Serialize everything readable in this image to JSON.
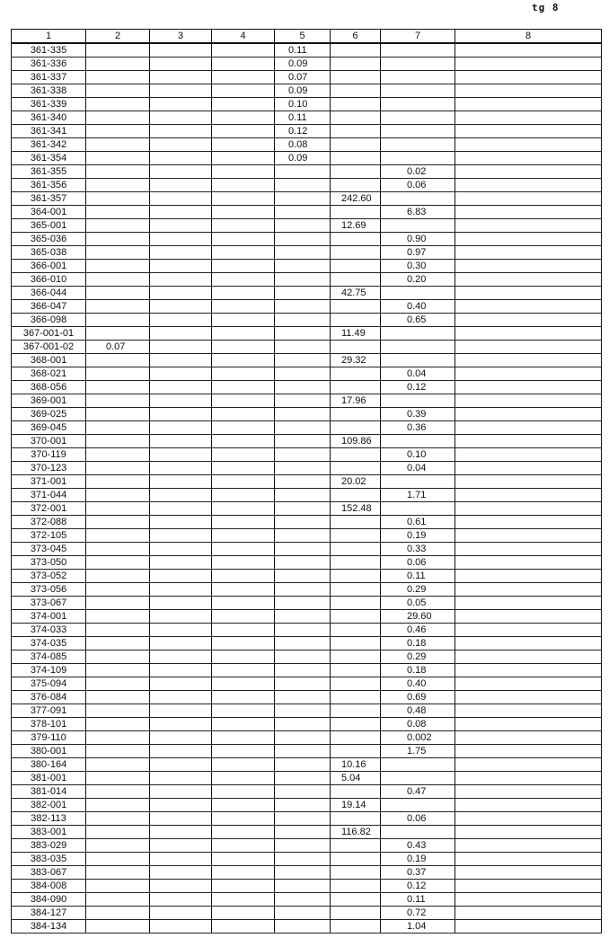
{
  "page_label": "tg 8",
  "headers": [
    "1",
    "2",
    "3",
    "4",
    "5",
    "6",
    "7",
    "8"
  ],
  "rows": [
    [
      "361-335",
      "",
      "",
      "",
      "0.11",
      "",
      "",
      ""
    ],
    [
      "361-336",
      "",
      "",
      "",
      "0.09",
      "",
      "",
      ""
    ],
    [
      "361-337",
      "",
      "",
      "",
      "0.07",
      "",
      "",
      ""
    ],
    [
      "361-338",
      "",
      "",
      "",
      "0.09",
      "",
      "",
      ""
    ],
    [
      "361-339",
      "",
      "",
      "",
      "0.10",
      "",
      "",
      ""
    ],
    [
      "361-340",
      "",
      "",
      "",
      "0.11",
      "",
      "",
      ""
    ],
    [
      "361-341",
      "",
      "",
      "",
      "0.12",
      "",
      "",
      ""
    ],
    [
      "361-342",
      "",
      "",
      "",
      "0.08",
      "",
      "",
      ""
    ],
    [
      "361-354",
      "",
      "",
      "",
      "0.09",
      "",
      "",
      ""
    ],
    [
      "361-355",
      "",
      "",
      "",
      "",
      "",
      "0.02",
      ""
    ],
    [
      "361-356",
      "",
      "",
      "",
      "",
      "",
      "0.06",
      ""
    ],
    [
      "361-357",
      "",
      "",
      "",
      "",
      "242.60",
      "",
      ""
    ],
    [
      "364-001",
      "",
      "",
      "",
      "",
      "",
      "6.83",
      ""
    ],
    [
      "365-001",
      "",
      "",
      "",
      "",
      "12.69",
      "",
      ""
    ],
    [
      "365-036",
      "",
      "",
      "",
      "",
      "",
      "0.90",
      ""
    ],
    [
      "365-038",
      "",
      "",
      "",
      "",
      "",
      "0.97",
      ""
    ],
    [
      "366-001",
      "",
      "",
      "",
      "",
      "",
      "0.30",
      ""
    ],
    [
      "366-010",
      "",
      "",
      "",
      "",
      "",
      "0.20",
      ""
    ],
    [
      "366-044",
      "",
      "",
      "",
      "",
      "42.75",
      "",
      ""
    ],
    [
      "366-047",
      "",
      "",
      "",
      "",
      "",
      "0.40",
      ""
    ],
    [
      "366-098",
      "",
      "",
      "",
      "",
      "",
      "0.65",
      ""
    ],
    [
      "367-001-01",
      "",
      "",
      "",
      "",
      "11.49",
      "",
      ""
    ],
    [
      "367-001-02",
      "0.07",
      "",
      "",
      "",
      "",
      "",
      ""
    ],
    [
      "368-001",
      "",
      "",
      "",
      "",
      "29.32",
      "",
      ""
    ],
    [
      "368-021",
      "",
      "",
      "",
      "",
      "",
      "0.04",
      ""
    ],
    [
      "368-056",
      "",
      "",
      "",
      "",
      "",
      "0.12",
      ""
    ],
    [
      "369-001",
      "",
      "",
      "",
      "",
      "17.96",
      "",
      ""
    ],
    [
      "369-025",
      "",
      "",
      "",
      "",
      "",
      "0.39",
      ""
    ],
    [
      "369-045",
      "",
      "",
      "",
      "",
      "",
      "0.36",
      ""
    ],
    [
      "370-001",
      "",
      "",
      "",
      "",
      "109.86",
      "",
      ""
    ],
    [
      "370-119",
      "",
      "",
      "",
      "",
      "",
      "0.10",
      ""
    ],
    [
      "370-123",
      "",
      "",
      "",
      "",
      "",
      "0.04",
      ""
    ],
    [
      "371-001",
      "",
      "",
      "",
      "",
      "20.02",
      "",
      ""
    ],
    [
      "371-044",
      "",
      "",
      "",
      "",
      "",
      "1.71",
      ""
    ],
    [
      "372-001",
      "",
      "",
      "",
      "",
      "152.48",
      "",
      ""
    ],
    [
      "372-088",
      "",
      "",
      "",
      "",
      "",
      "0.61",
      ""
    ],
    [
      "372-105",
      "",
      "",
      "",
      "",
      "",
      "0.19",
      ""
    ],
    [
      "373-045",
      "",
      "",
      "",
      "",
      "",
      "0.33",
      ""
    ],
    [
      "373-050",
      "",
      "",
      "",
      "",
      "",
      "0.06",
      ""
    ],
    [
      "373-052",
      "",
      "",
      "",
      "",
      "",
      "0.11",
      ""
    ],
    [
      "373-056",
      "",
      "",
      "",
      "",
      "",
      "0.29",
      ""
    ],
    [
      "373-067",
      "",
      "",
      "",
      "",
      "",
      "0.05",
      ""
    ],
    [
      "374-001",
      "",
      "",
      "",
      "",
      "",
      "29.60",
      ""
    ],
    [
      "374-033",
      "",
      "",
      "",
      "",
      "",
      "0.46",
      ""
    ],
    [
      "374-035",
      "",
      "",
      "",
      "",
      "",
      "0.18",
      ""
    ],
    [
      "374-085",
      "",
      "",
      "",
      "",
      "",
      "0.29",
      ""
    ],
    [
      "374-109",
      "",
      "",
      "",
      "",
      "",
      "0.18",
      ""
    ],
    [
      "375-094",
      "",
      "",
      "",
      "",
      "",
      "0.40",
      ""
    ],
    [
      "376-084",
      "",
      "",
      "",
      "",
      "",
      "0.69",
      ""
    ],
    [
      "377-091",
      "",
      "",
      "",
      "",
      "",
      "0.48",
      ""
    ],
    [
      "378-101",
      "",
      "",
      "",
      "",
      "",
      "0.08",
      ""
    ],
    [
      "379-110",
      "",
      "",
      "",
      "",
      "",
      "0.002",
      ""
    ],
    [
      "380-001",
      "",
      "",
      "",
      "",
      "",
      "1.75",
      ""
    ],
    [
      "380-164",
      "",
      "",
      "",
      "",
      "10.16",
      "",
      ""
    ],
    [
      "381-001",
      "",
      "",
      "",
      "",
      "5.04",
      "",
      ""
    ],
    [
      "381-014",
      "",
      "",
      "",
      "",
      "",
      "0.47",
      ""
    ],
    [
      "382-001",
      "",
      "",
      "",
      "",
      "19.14",
      "",
      ""
    ],
    [
      "382-113",
      "",
      "",
      "",
      "",
      "",
      "0.06",
      ""
    ],
    [
      "383-001",
      "",
      "",
      "",
      "",
      "116.82",
      "",
      ""
    ],
    [
      "383-029",
      "",
      "",
      "",
      "",
      "",
      "0.43",
      ""
    ],
    [
      "383-035",
      "",
      "",
      "",
      "",
      "",
      "0.19",
      ""
    ],
    [
      "383-067",
      "",
      "",
      "",
      "",
      "",
      "0.37",
      ""
    ],
    [
      "384-008",
      "",
      "",
      "",
      "",
      "",
      "0.12",
      ""
    ],
    [
      "384-090",
      "",
      "",
      "",
      "",
      "",
      "0.11",
      ""
    ],
    [
      "384-127",
      "",
      "",
      "",
      "",
      "",
      "0.72",
      ""
    ],
    [
      "384-134",
      "",
      "",
      "",
      "",
      "",
      "1.04",
      ""
    ]
  ]
}
